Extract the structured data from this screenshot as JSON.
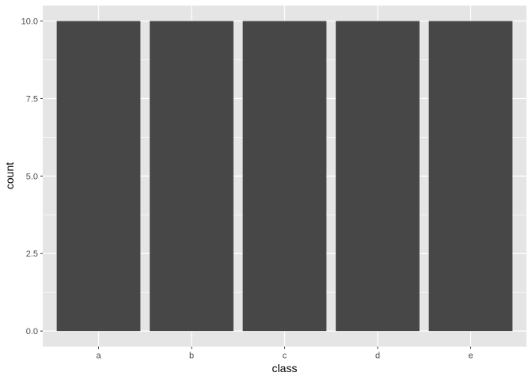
{
  "chart_data": {
    "type": "bar",
    "categories": [
      "a",
      "b",
      "c",
      "d",
      "e"
    ],
    "values": [
      10,
      10,
      10,
      10,
      10
    ],
    "xlabel": "class",
    "ylabel": "count",
    "ylim": [
      -0.5,
      10.5
    ],
    "yticks": [
      0,
      2.5,
      5,
      7.5,
      10
    ],
    "ytick_labels": [
      "0.0",
      "2.5",
      "5.0",
      "7.5",
      "10.0"
    ],
    "grid": true,
    "colors": {
      "bar": "#474747",
      "panel": "#e5e5e5",
      "grid": "#ffffff",
      "text": "#4d4d4d"
    }
  }
}
